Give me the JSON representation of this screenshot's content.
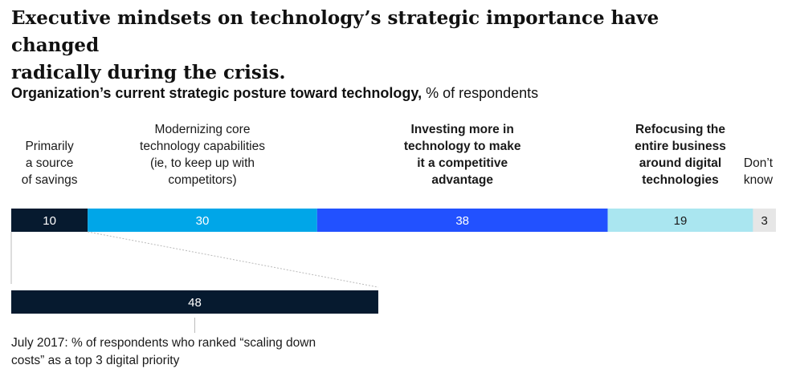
{
  "headline_line1": "Executive mindsets on technology’s strategic importance have changed",
  "headline_line2": "radically during the crisis.",
  "subtitle_bold": "Organization’s current strategic posture toward technology,",
  "subtitle_unit": " % of respondents",
  "colors": {
    "navy": "#061a2f",
    "cyan": "#00a6e8",
    "blue": "#2251ff",
    "lightcyan": "#aae6f0",
    "grey": "#e6e6e6"
  },
  "chart_data": {
    "type": "bar",
    "orientation": "horizontal-stacked",
    "unit": "% of respondents",
    "segments": [
      {
        "label_lines": [
          "Primarily",
          "a source",
          "of savings"
        ],
        "value": 10,
        "color": "#061a2f",
        "emphasis": false
      },
      {
        "label_lines": [
          "Modernizing core",
          "technology capabilities",
          "(ie, to keep up with",
          "competitors)"
        ],
        "value": 30,
        "color": "#00a6e8",
        "emphasis": false
      },
      {
        "label_lines": [
          "Investing more in",
          "technology to make",
          "it a competitive",
          "advantage"
        ],
        "value": 38,
        "color": "#2251ff",
        "emphasis": true
      },
      {
        "label_lines": [
          "Refocusing the",
          "entire business",
          "around digital",
          "technologies"
        ],
        "value": 19,
        "color": "#aae6f0",
        "emphasis": true
      },
      {
        "label_lines": [
          "Don’t",
          "know"
        ],
        "value": 3,
        "color": "#e6e6e6",
        "emphasis": false
      }
    ],
    "comparison": {
      "value": 48,
      "color": "#061a2f",
      "note_line1": "July 2017: % of respondents who ranked “scaling down",
      "note_line2": "costs” as a top 3 digital priority"
    }
  }
}
